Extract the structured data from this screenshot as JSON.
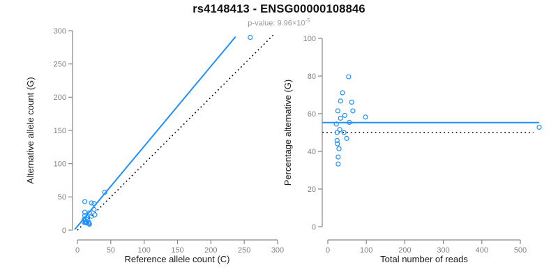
{
  "header": {
    "title": "rs4148413 - ENSG00000108846",
    "pvalue_prefix": "p-value: 9.96×10",
    "pvalue_exponent": "-5"
  },
  "colors": {
    "accent_blue": "#1E90FF",
    "dotted_black": "#000000",
    "axis_gray": "#878787",
    "tick_label_gray": "#808080"
  },
  "chart_data": [
    {
      "type": "scatter",
      "panel": "left",
      "xlabel": "Reference allele count (C)",
      "ylabel": "Alternative allele count (G)",
      "xlim": [
        0,
        300
      ],
      "ylim": [
        0,
        300
      ],
      "xticks": [
        0,
        50,
        100,
        150,
        200,
        250,
        300
      ],
      "yticks": [
        0,
        50,
        100,
        150,
        200,
        250,
        300
      ],
      "grid": false,
      "marker": "open-circle",
      "points": [
        [
          11,
          43
        ],
        [
          11,
          27
        ],
        [
          11,
          22
        ],
        [
          21,
          41
        ],
        [
          10,
          16
        ],
        [
          25,
          40
        ],
        [
          18,
          26
        ],
        [
          14,
          19
        ],
        [
          41,
          57
        ],
        [
          10,
          12
        ],
        [
          25,
          31
        ],
        [
          15,
          16
        ],
        [
          21,
          21
        ],
        [
          12,
          12
        ],
        [
          13,
          11
        ],
        [
          26,
          23
        ],
        [
          14,
          11
        ],
        [
          17,
          12
        ],
        [
          17,
          10
        ],
        [
          18,
          9
        ],
        [
          259,
          290
        ]
      ],
      "lines": [
        {
          "name": "fit-line",
          "style": "solid",
          "color": "#1E90FF",
          "width": 2,
          "points": [
            [
              -4,
              1
            ],
            [
              237,
              291
            ]
          ]
        },
        {
          "name": "identity-line",
          "style": "dotted",
          "color": "#000000",
          "width": 1.6,
          "points": [
            [
              0,
              0
            ],
            [
              295,
              295
            ]
          ]
        }
      ]
    },
    {
      "type": "scatter",
      "panel": "right",
      "xlabel": "Total number of reads",
      "ylabel": "Percentage alternative (G)",
      "xlim": [
        0,
        500
      ],
      "ylim": [
        0,
        100
      ],
      "xticks": [
        0,
        100,
        200,
        300,
        400,
        500
      ],
      "yticks": [
        0,
        20,
        40,
        60,
        80,
        100
      ],
      "grid": false,
      "marker": "open-circle",
      "points": [
        [
          54,
          79.6
        ],
        [
          38,
          71.1
        ],
        [
          33,
          66.7
        ],
        [
          62,
          66.1
        ],
        [
          26,
          61.5
        ],
        [
          65,
          61.5
        ],
        [
          44,
          59.1
        ],
        [
          33,
          57.6
        ],
        [
          98,
          58.2
        ],
        [
          22,
          54.5
        ],
        [
          56,
          55.4
        ],
        [
          31,
          51.6
        ],
        [
          42,
          50.0
        ],
        [
          24,
          50.0
        ],
        [
          24,
          45.8
        ],
        [
          49,
          46.9
        ],
        [
          25,
          44.0
        ],
        [
          29,
          41.4
        ],
        [
          27,
          37.0
        ],
        [
          27,
          33.3
        ],
        [
          549,
          52.8
        ]
      ],
      "lines": [
        {
          "name": "mean-line",
          "style": "solid",
          "color": "#1E90FF",
          "width": 2,
          "points": [
            [
              -14,
              55.3
            ],
            [
              549,
              55.3
            ]
          ]
        },
        {
          "name": "expected-line",
          "style": "dotted",
          "color": "#000000",
          "width": 1.6,
          "points": [
            [
              -14,
              50
            ],
            [
              534,
              50
            ]
          ]
        }
      ]
    }
  ]
}
